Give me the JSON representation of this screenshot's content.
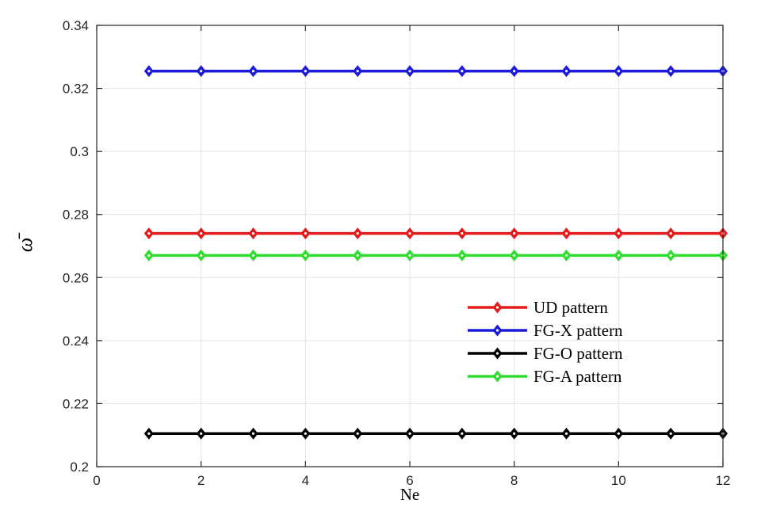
{
  "figure": {
    "background": "#ffffff",
    "axis_color": "#262626",
    "grid_color": "#e4e4e4",
    "tick_label_color": "#262626",
    "marker_center_color": "#ffffff"
  },
  "chart_data": {
    "type": "line",
    "title": "",
    "xlabel": "Ne",
    "ylabel": "ω̄",
    "xlim": [
      0,
      12
    ],
    "ylim": [
      0.2,
      0.34
    ],
    "xticks": [
      0,
      2,
      4,
      6,
      8,
      10,
      12
    ],
    "xtick_labels": [
      "0",
      "2",
      "4",
      "6",
      "8",
      "10",
      "12"
    ],
    "yticks": [
      0.2,
      0.22,
      0.24,
      0.26,
      0.28,
      0.3,
      0.32,
      0.34
    ],
    "ytick_labels": [
      "0.2",
      "0.22",
      "0.24",
      "0.26",
      "0.28",
      "0.3",
      "0.32",
      "0.34"
    ],
    "grid": true,
    "legend_location": "center-right",
    "legend_box": false,
    "x": [
      1,
      2,
      3,
      4,
      5,
      6,
      7,
      8,
      9,
      10,
      11,
      12
    ],
    "series": [
      {
        "name": "UD pattern",
        "color": "#e51b1b",
        "marker": "diamond",
        "values": [
          0.274,
          0.274,
          0.274,
          0.274,
          0.274,
          0.274,
          0.274,
          0.274,
          0.274,
          0.274,
          0.274,
          0.274
        ]
      },
      {
        "name": "FG-X pattern",
        "color": "#1b1bd9",
        "marker": "diamond",
        "values": [
          0.3255,
          0.3255,
          0.3255,
          0.3255,
          0.3255,
          0.3255,
          0.3255,
          0.3255,
          0.3255,
          0.3255,
          0.3255,
          0.3255
        ]
      },
      {
        "name": "FG-O pattern",
        "color": "#000000",
        "marker": "diamond",
        "values": [
          0.2105,
          0.2105,
          0.2105,
          0.2105,
          0.2105,
          0.2105,
          0.2105,
          0.2105,
          0.2105,
          0.2105,
          0.2105,
          0.2105
        ]
      },
      {
        "name": "FG-A pattern",
        "color": "#2fdd2f",
        "marker": "diamond",
        "values": [
          0.267,
          0.267,
          0.267,
          0.267,
          0.267,
          0.267,
          0.267,
          0.267,
          0.267,
          0.267,
          0.267,
          0.267
        ]
      }
    ]
  }
}
